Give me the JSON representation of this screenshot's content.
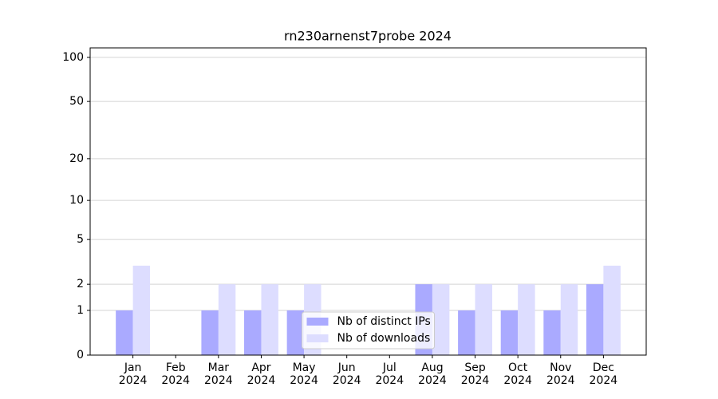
{
  "chart_data": {
    "type": "bar",
    "title": "rn230arnenst7probe 2024",
    "categories": [
      "Jan\n2024",
      "Feb\n2024",
      "Mar\n2024",
      "Apr\n2024",
      "May\n2024",
      "Jun\n2024",
      "Jul\n2024",
      "Aug\n2024",
      "Sep\n2024",
      "Oct\n2024",
      "Nov\n2024",
      "Dec\n2024"
    ],
    "series": [
      {
        "name": "Nb of distinct IPs",
        "color": "#aaaaff",
        "values": [
          1,
          0,
          1,
          1,
          1,
          0,
          0,
          2,
          1,
          1,
          1,
          2
        ]
      },
      {
        "name": "Nb of downloads",
        "color": "#ddddff",
        "values": [
          3,
          0,
          2,
          2,
          2,
          0,
          0,
          2,
          2,
          2,
          2,
          3
        ]
      }
    ],
    "y_scale": "log1p",
    "ylim": [
      0,
      116
    ],
    "yticks": [
      0,
      1,
      2,
      5,
      10,
      20,
      50,
      100
    ],
    "grid": true,
    "legend": "lower center"
  }
}
